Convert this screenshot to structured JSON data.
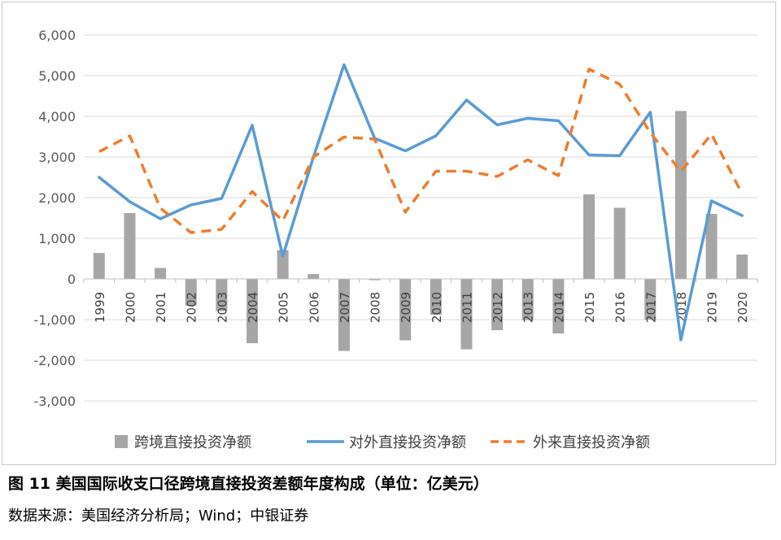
{
  "figure": {
    "caption": "图 11  美国国际收支口径跨境直接投资差额年度构成（单位：亿美元）",
    "source": "数据来源：美国经济分析局；Wind；中银证券"
  },
  "chart_data": {
    "type": "bar+line",
    "categories": [
      "1999",
      "2000",
      "2001",
      "2002",
      "2003",
      "2004",
      "2005",
      "2006",
      "2007",
      "2008",
      "2009",
      "2010",
      "2011",
      "2012",
      "2013",
      "2014",
      "2015",
      "2016",
      "2017",
      "2018",
      "2019",
      "2020"
    ],
    "y_ticks": [
      "6,000",
      "5,000",
      "4,000",
      "3,000",
      "2,000",
      "1,000",
      "0",
      "-1,000",
      "-2,000",
      "-3,000"
    ],
    "ylim": [
      -3000,
      6000
    ],
    "grid": true,
    "legend_position": "bottom",
    "series": [
      {
        "name": "跨境直接投资净额",
        "type": "bar",
        "color": "#a6a6a6",
        "values": [
          640,
          1620,
          270,
          -660,
          -790,
          -1580,
          710,
          120,
          -1770,
          -30,
          -1510,
          -880,
          -1730,
          -1260,
          -1010,
          -1340,
          2080,
          1750,
          -1000,
          4130,
          1600,
          600
        ]
      },
      {
        "name": "对外直接投资净额",
        "type": "line",
        "color": "#5b9bd5",
        "values": [
          2500,
          1900,
          1480,
          1820,
          1980,
          3780,
          560,
          3000,
          5270,
          3460,
          3150,
          3520,
          4400,
          3790,
          3950,
          3890,
          3050,
          3030,
          4100,
          -1500,
          1920,
          1560
        ]
      },
      {
        "name": "外来直接投资净额",
        "type": "dashed-line",
        "color": "#ed7d31",
        "values": [
          3130,
          3520,
          1740,
          1140,
          1220,
          2150,
          1430,
          3000,
          3490,
          3440,
          1640,
          2650,
          2650,
          2520,
          2930,
          2540,
          5160,
          4790,
          3600,
          2640,
          3560,
          2090
        ]
      }
    ]
  }
}
